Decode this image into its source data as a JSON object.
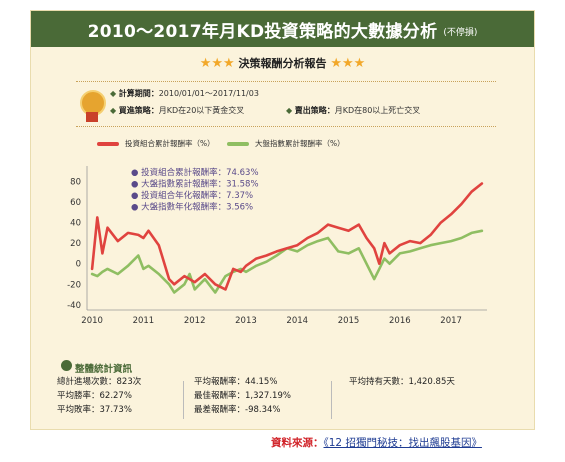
{
  "header": {
    "title": "2010～2017年月KD投資策略的大數據分析",
    "subtitle": "(不停損)"
  },
  "report": {
    "title": "決策報酬分析報告",
    "period_label": "計算期間：",
    "period_value": "2010/01/01～2017/11/03",
    "buy_label": "買進策略：",
    "buy_value": "月KD在20以下黃金交叉",
    "sell_label": "賣出策略：",
    "sell_value": "月KD在80以上死亡交叉"
  },
  "legend": {
    "portfolio": "投資組合累計報酬率（%）",
    "market": "大盤指數累計報酬率（%）"
  },
  "chart_annotations": [
    "● 投資組合累計報酬率：74.63%",
    "● 大盤指數累計報酬率：31.58%",
    "● 投資組合年化報酬率：7.37%",
    "● 大盤指數年化報酬率：3.56%"
  ],
  "colors": {
    "portfolio": "#e0433f",
    "market": "#8fbe62",
    "banner": "#4a6a37",
    "annotation": "#5a4a8a"
  },
  "chart_data": {
    "type": "line",
    "x": [
      2010.0,
      2010.1,
      2010.2,
      2010.3,
      2010.5,
      2010.7,
      2010.9,
      2011.0,
      2011.1,
      2011.3,
      2011.5,
      2011.6,
      2011.8,
      2011.9,
      2012.0,
      2012.2,
      2012.4,
      2012.6,
      2012.75,
      2012.9,
      2013.0,
      2013.2,
      2013.4,
      2013.6,
      2013.8,
      2014.0,
      2014.2,
      2014.4,
      2014.6,
      2014.8,
      2015.0,
      2015.2,
      2015.35,
      2015.5,
      2015.6,
      2015.7,
      2015.8,
      2016.0,
      2016.2,
      2016.4,
      2016.6,
      2016.8,
      2017.0,
      2017.2,
      2017.4,
      2017.6
    ],
    "series": [
      {
        "name": "投資組合累計報酬率（%）",
        "values": [
          -5,
          45,
          10,
          35,
          22,
          30,
          28,
          25,
          32,
          18,
          -15,
          -20,
          -12,
          -15,
          -18,
          -10,
          -20,
          -25,
          -5,
          -8,
          -2,
          5,
          8,
          12,
          15,
          18,
          25,
          30,
          38,
          35,
          32,
          38,
          25,
          15,
          0,
          20,
          10,
          18,
          22,
          20,
          28,
          40,
          48,
          58,
          70,
          78
        ]
      },
      {
        "name": "大盤指數累計報酬率（%）",
        "values": [
          -10,
          -12,
          -8,
          -5,
          -10,
          -2,
          8,
          -5,
          -2,
          -10,
          -20,
          -28,
          -20,
          -10,
          -25,
          -15,
          -28,
          -12,
          -8,
          -5,
          -8,
          -2,
          2,
          8,
          15,
          12,
          18,
          22,
          25,
          12,
          10,
          15,
          0,
          -15,
          -5,
          5,
          0,
          10,
          12,
          15,
          18,
          20,
          22,
          25,
          30,
          32
        ]
      }
    ],
    "xticks": [
      2010,
      2011,
      2012,
      2013,
      2014,
      2015,
      2016,
      2017
    ],
    "yticks": [
      -40,
      -20,
      0,
      20,
      40,
      60,
      80
    ],
    "xlim": [
      2009.9,
      2017.7
    ],
    "ylim": [
      -45,
      95
    ],
    "grid": false
  },
  "stats": {
    "title": "整體統計資訊",
    "col1": [
      "總計進場次數：823次",
      "平均勝率：62.27%",
      "平均敗率：37.73%"
    ],
    "col2": [
      "平均報酬率：44.15%",
      "最佳報酬率：1,327.19%",
      "最差報酬率：-98.34%"
    ],
    "col3": [
      "平均持有天數：1,420.85天"
    ]
  },
  "source": {
    "label": "資料來源：",
    "book": "《12 招獨門秘技：找出飆股基因》"
  }
}
